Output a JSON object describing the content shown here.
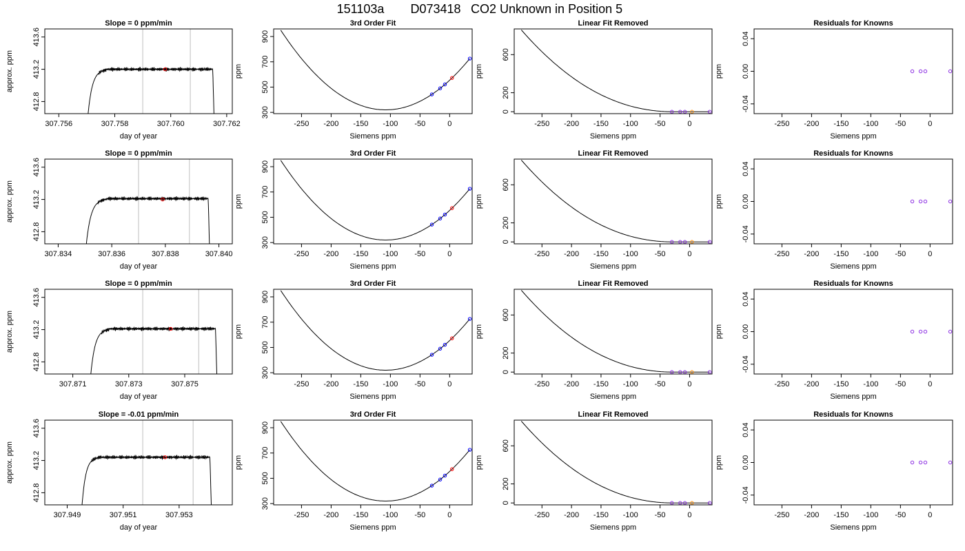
{
  "page": {
    "title_parts": [
      "151103a",
      "D073418",
      "CO2 Unknown in Position  5"
    ]
  },
  "chart_data": [
    {
      "type": "line",
      "title": "Slope =  0  ppm/min",
      "xlabel": "day of year",
      "ylabel": "approx. ppm",
      "xlim": [
        307.7555,
        307.7622
      ],
      "ylim": [
        412.65,
        413.7
      ],
      "xticks": [
        "307.756",
        "307.758",
        "307.760",
        "307.762"
      ],
      "yticks": [
        "412.8",
        "413.2",
        "413.6"
      ],
      "vlines": [
        307.759,
        307.7607
      ],
      "start": 307.757,
      "rise_end": 307.7577,
      "plateau_end": 307.7615,
      "baseline": 413.2,
      "mean_value": 413.2,
      "marker_x": 307.7598,
      "colors": {
        "line": "#000000",
        "marker": "#ff0000",
        "vline": "#bebebe"
      }
    },
    {
      "type": "line",
      "title": "3rd Order Fit",
      "xlabel": "Siemens ppm",
      "ylabel": "ppm",
      "xlim": [
        -297,
        38
      ],
      "ylim": [
        290,
        960
      ],
      "xticks": [
        "-250",
        "-200",
        "-150",
        "-100",
        "-50",
        "0"
      ],
      "yticks": [
        "300",
        "500",
        "700",
        "900"
      ],
      "curve": {
        "x_min": -285,
        "x_max": 34,
        "vertex_x": -108,
        "vertex_y": 320
      },
      "knowns_x": [
        -30,
        -16,
        -8,
        34
      ],
      "unknown_x": 4,
      "colors": {
        "line": "#000000",
        "known": "#0000ff",
        "unknown": "#ff0000"
      }
    },
    {
      "type": "line",
      "title": "Linear Fit Removed",
      "xlabel": "Siemens ppm",
      "ylabel": "ppm",
      "xlim": [
        -297,
        38
      ],
      "ylim": [
        -20,
        870
      ],
      "xticks": [
        "-250",
        "-200",
        "-150",
        "-100",
        "-50",
        "0"
      ],
      "yticks": [
        "0",
        "200",
        "600"
      ],
      "knowns_x": [
        -30,
        -16,
        -8,
        34
      ],
      "unknown_x": 4,
      "colors": {
        "line": "#000000",
        "known": "#8a2be2",
        "unknown": "#ff8c00"
      }
    },
    {
      "type": "scatter",
      "title": "Residuals for Knowns",
      "xlabel": "Siemens ppm",
      "ylabel": "ppm",
      "xlim": [
        -297,
        38
      ],
      "ylim": [
        -0.052,
        0.052
      ],
      "xticks": [
        "-250",
        "-200",
        "-150",
        "-100",
        "-50",
        "0"
      ],
      "yticks": [
        "-0.04",
        "0.00",
        "0.04"
      ],
      "knowns": [
        {
          "x": -30,
          "y": 0
        },
        {
          "x": -16,
          "y": 0
        },
        {
          "x": -8,
          "y": 0
        },
        {
          "x": 34,
          "y": 0
        }
      ],
      "colors": {
        "point": "#8a2be2"
      }
    },
    {
      "type": "line",
      "title": "Slope =  0  ppm/min",
      "xlabel": "day of year",
      "ylabel": "approx. ppm",
      "xlim": [
        307.8335,
        307.8405
      ],
      "ylim": [
        412.65,
        413.7
      ],
      "xticks": [
        "307.834",
        "307.836",
        "307.838",
        "307.840"
      ],
      "yticks": [
        "412.8",
        "413.2",
        "413.6"
      ],
      "vlines": [
        307.837,
        307.8389
      ],
      "start": 307.835,
      "rise_end": 307.8358,
      "plateau_end": 307.8396,
      "baseline": 413.21,
      "mean_value": 413.2,
      "marker_x": 307.8379,
      "colors": {
        "line": "#000000",
        "marker": "#ff0000",
        "vline": "#bebebe"
      }
    },
    {
      "type": "line",
      "title": "3rd Order Fit",
      "xlabel": "Siemens ppm",
      "ylabel": "ppm",
      "xlim": [
        -297,
        38
      ],
      "ylim": [
        290,
        960
      ],
      "xticks": [
        "-250",
        "-200",
        "-150",
        "-100",
        "-50",
        "0"
      ],
      "yticks": [
        "300",
        "500",
        "700",
        "900"
      ],
      "curve": {
        "x_min": -285,
        "x_max": 34,
        "vertex_x": -108,
        "vertex_y": 320
      },
      "knowns_x": [
        -30,
        -16,
        -8,
        34
      ],
      "unknown_x": 4,
      "colors": {
        "line": "#000000",
        "known": "#0000ff",
        "unknown": "#ff0000"
      }
    },
    {
      "type": "line",
      "title": "Linear Fit Removed",
      "xlabel": "Siemens ppm",
      "ylabel": "ppm",
      "xlim": [
        -297,
        38
      ],
      "ylim": [
        -20,
        870
      ],
      "xticks": [
        "-250",
        "-200",
        "-150",
        "-100",
        "-50",
        "0"
      ],
      "yticks": [
        "0",
        "200",
        "600"
      ],
      "knowns_x": [
        -30,
        -16,
        -8,
        34
      ],
      "unknown_x": 4,
      "colors": {
        "line": "#000000",
        "known": "#8a2be2",
        "unknown": "#ff8c00"
      }
    },
    {
      "type": "scatter",
      "title": "Residuals for Knowns",
      "xlabel": "Siemens ppm",
      "ylabel": "ppm",
      "xlim": [
        -297,
        38
      ],
      "ylim": [
        -0.052,
        0.052
      ],
      "xticks": [
        "-250",
        "-200",
        "-150",
        "-100",
        "-50",
        "0"
      ],
      "yticks": [
        "-0.04",
        "0.00",
        "0.04"
      ],
      "knowns": [
        {
          "x": -30,
          "y": 0
        },
        {
          "x": -16,
          "y": 0
        },
        {
          "x": -8,
          "y": 0
        },
        {
          "x": 34,
          "y": 0
        }
      ],
      "colors": {
        "point": "#8a2be2"
      }
    },
    {
      "type": "line",
      "title": "Slope =  0  ppm/min",
      "xlabel": "day of year",
      "ylabel": "approx. ppm",
      "xlim": [
        307.87,
        307.8767
      ],
      "ylim": [
        412.65,
        413.7
      ],
      "xticks": [
        "307.871",
        "307.873",
        "307.875"
      ],
      "yticks": [
        "412.8",
        "413.2",
        "413.6"
      ],
      "vlines": [
        307.8735,
        307.8755
      ],
      "start": 307.8716,
      "rise_end": 307.8723,
      "plateau_end": 307.8761,
      "baseline": 413.21,
      "mean_value": 413.21,
      "marker_x": 307.8745,
      "colors": {
        "line": "#000000",
        "marker": "#ff0000",
        "vline": "#bebebe"
      }
    },
    {
      "type": "line",
      "title": "3rd Order Fit",
      "xlabel": "Siemens ppm",
      "ylabel": "ppm",
      "xlim": [
        -297,
        38
      ],
      "ylim": [
        290,
        960
      ],
      "xticks": [
        "-250",
        "-200",
        "-150",
        "-100",
        "-50",
        "0"
      ],
      "yticks": [
        "300",
        "500",
        "700",
        "900"
      ],
      "curve": {
        "x_min": -285,
        "x_max": 34,
        "vertex_x": -108,
        "vertex_y": 320
      },
      "knowns_x": [
        -30,
        -16,
        -8,
        34
      ],
      "unknown_x": 4,
      "colors": {
        "line": "#000000",
        "known": "#0000ff",
        "unknown": "#ff0000"
      }
    },
    {
      "type": "line",
      "title": "Linear Fit Removed",
      "xlabel": "Siemens ppm",
      "ylabel": "ppm",
      "xlim": [
        -297,
        38
      ],
      "ylim": [
        -20,
        870
      ],
      "xticks": [
        "-250",
        "-200",
        "-150",
        "-100",
        "-50",
        "0"
      ],
      "yticks": [
        "0",
        "200",
        "600"
      ],
      "knowns_x": [
        -30,
        -16,
        -8,
        34
      ],
      "unknown_x": 4,
      "colors": {
        "line": "#000000",
        "known": "#8a2be2",
        "unknown": "#ff8c00"
      }
    },
    {
      "type": "scatter",
      "title": "Residuals for Knowns",
      "xlabel": "Siemens ppm",
      "ylabel": "ppm",
      "xlim": [
        -297,
        38
      ],
      "ylim": [
        -0.052,
        0.052
      ],
      "xticks": [
        "-250",
        "-200",
        "-150",
        "-100",
        "-50",
        "0"
      ],
      "yticks": [
        "-0.04",
        "0.00",
        "0.04"
      ],
      "knowns": [
        {
          "x": -30,
          "y": 0
        },
        {
          "x": -16,
          "y": 0
        },
        {
          "x": -8,
          "y": 0
        },
        {
          "x": 34,
          "y": 0
        }
      ],
      "colors": {
        "point": "#8a2be2"
      }
    },
    {
      "type": "line",
      "title": "Slope =  -0.01  ppm/min",
      "xlabel": "day of year",
      "ylabel": "approx. ppm",
      "xlim": [
        307.9482,
        307.9549
      ],
      "ylim": [
        412.65,
        413.7
      ],
      "xticks": [
        "307.949",
        "307.951",
        "307.953"
      ],
      "yticks": [
        "412.8",
        "413.2",
        "413.6"
      ],
      "vlines": [
        307.9517,
        307.9535
      ],
      "start": 307.9495,
      "rise_end": 307.9501,
      "plateau_end": 307.9541,
      "baseline": 413.24,
      "mean_value": 413.24,
      "marker_x": 307.9525,
      "colors": {
        "line": "#000000",
        "marker": "#ff0000",
        "vline": "#bebebe"
      }
    },
    {
      "type": "line",
      "title": "3rd Order Fit",
      "xlabel": "Siemens ppm",
      "ylabel": "ppm",
      "xlim": [
        -297,
        38
      ],
      "ylim": [
        290,
        960
      ],
      "xticks": [
        "-250",
        "-200",
        "-150",
        "-100",
        "-50",
        "0"
      ],
      "yticks": [
        "300",
        "500",
        "700",
        "900"
      ],
      "curve": {
        "x_min": -285,
        "x_max": 34,
        "vertex_x": -108,
        "vertex_y": 320
      },
      "knowns_x": [
        -30,
        -16,
        -8,
        34
      ],
      "unknown_x": 4,
      "colors": {
        "line": "#000000",
        "known": "#0000ff",
        "unknown": "#ff0000"
      }
    },
    {
      "type": "line",
      "title": "Linear Fit Removed",
      "xlabel": "Siemens ppm",
      "ylabel": "ppm",
      "xlim": [
        -297,
        38
      ],
      "ylim": [
        -20,
        870
      ],
      "xticks": [
        "-250",
        "-200",
        "-150",
        "-100",
        "-50",
        "0"
      ],
      "yticks": [
        "0",
        "200",
        "600"
      ],
      "knowns_x": [
        -30,
        -16,
        -8,
        34
      ],
      "unknown_x": 4,
      "colors": {
        "line": "#000000",
        "known": "#8a2be2",
        "unknown": "#ff8c00"
      }
    },
    {
      "type": "scatter",
      "title": "Residuals for Knowns",
      "xlabel": "Siemens ppm",
      "ylabel": "ppm",
      "xlim": [
        -297,
        38
      ],
      "ylim": [
        -0.052,
        0.052
      ],
      "xticks": [
        "-250",
        "-200",
        "-150",
        "-100",
        "-50",
        "0"
      ],
      "yticks": [
        "-0.04",
        "0.00",
        "0.04"
      ],
      "knowns": [
        {
          "x": -30,
          "y": 0
        },
        {
          "x": -16,
          "y": 0
        },
        {
          "x": -8,
          "y": 0
        },
        {
          "x": 34,
          "y": 0
        }
      ],
      "colors": {
        "point": "#8a2be2"
      }
    }
  ]
}
